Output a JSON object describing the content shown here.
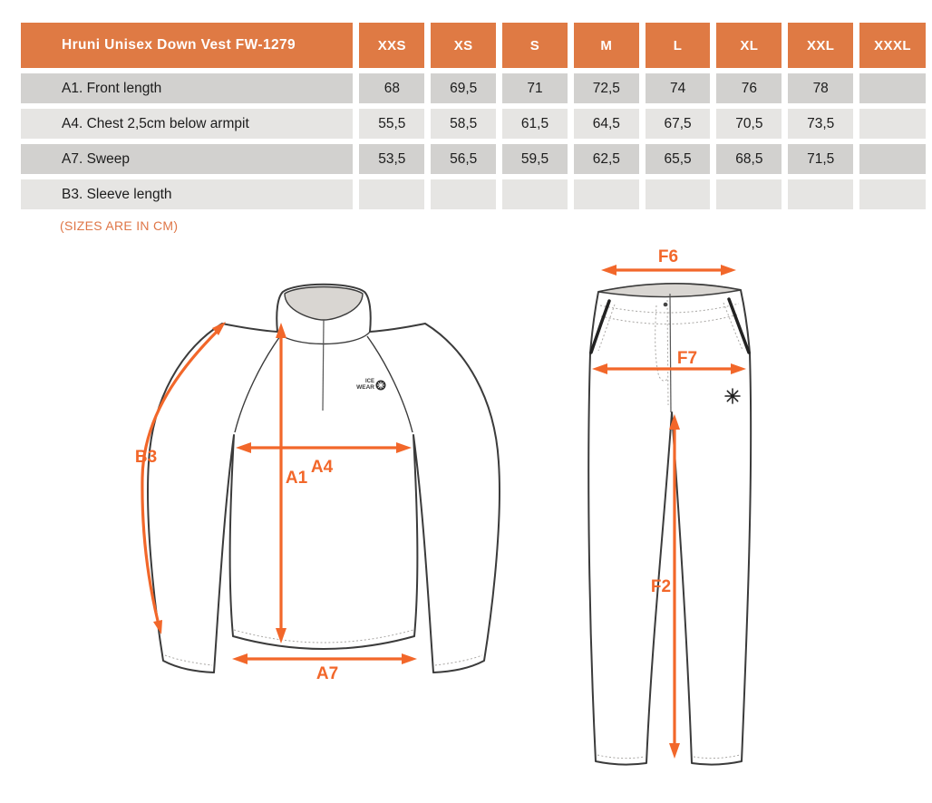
{
  "table": {
    "title": "Hruni Unisex Down Vest FW-1279",
    "columns": [
      "XXS",
      "XS",
      "S",
      "M",
      "L",
      "XL",
      "XXL",
      "XXXL"
    ],
    "rows": [
      {
        "label": "A1. Front length",
        "values": [
          "68",
          "69,5",
          "71",
          "72,5",
          "74",
          "76",
          "78",
          ""
        ]
      },
      {
        "label": "A4. Chest 2,5cm below armpit",
        "values": [
          "55,5",
          "58,5",
          "61,5",
          "64,5",
          "67,5",
          "70,5",
          "73,5",
          ""
        ]
      },
      {
        "label": "A7. Sweep",
        "values": [
          "53,5",
          "56,5",
          "59,5",
          "62,5",
          "65,5",
          "68,5",
          "71,5",
          ""
        ]
      },
      {
        "label": "B3. Sleeve length",
        "values": [
          "",
          "",
          "",
          "",
          "",
          "",
          "",
          ""
        ]
      }
    ]
  },
  "note": "(SIZES ARE IN CM)",
  "diagrams": {
    "garment": {
      "labels": {
        "b3": "B3",
        "a4": "A4",
        "a1": "A1",
        "a7": "A7"
      },
      "logo": {
        "line1": "ICE",
        "line2": "WEAR"
      }
    },
    "pants": {
      "labels": {
        "f6": "F6",
        "f7": "F7",
        "f2": "F2"
      }
    }
  },
  "colors": {
    "header_orange": "#df7a44",
    "arrow_orange": "#f2672a",
    "note_orange": "#df7647",
    "row_gray_dark": "#d2d1cf",
    "row_gray_light": "#e6e5e3",
    "diagram_line": "#3b3b3b",
    "diagram_gray_fill": "#d9d6d2"
  }
}
